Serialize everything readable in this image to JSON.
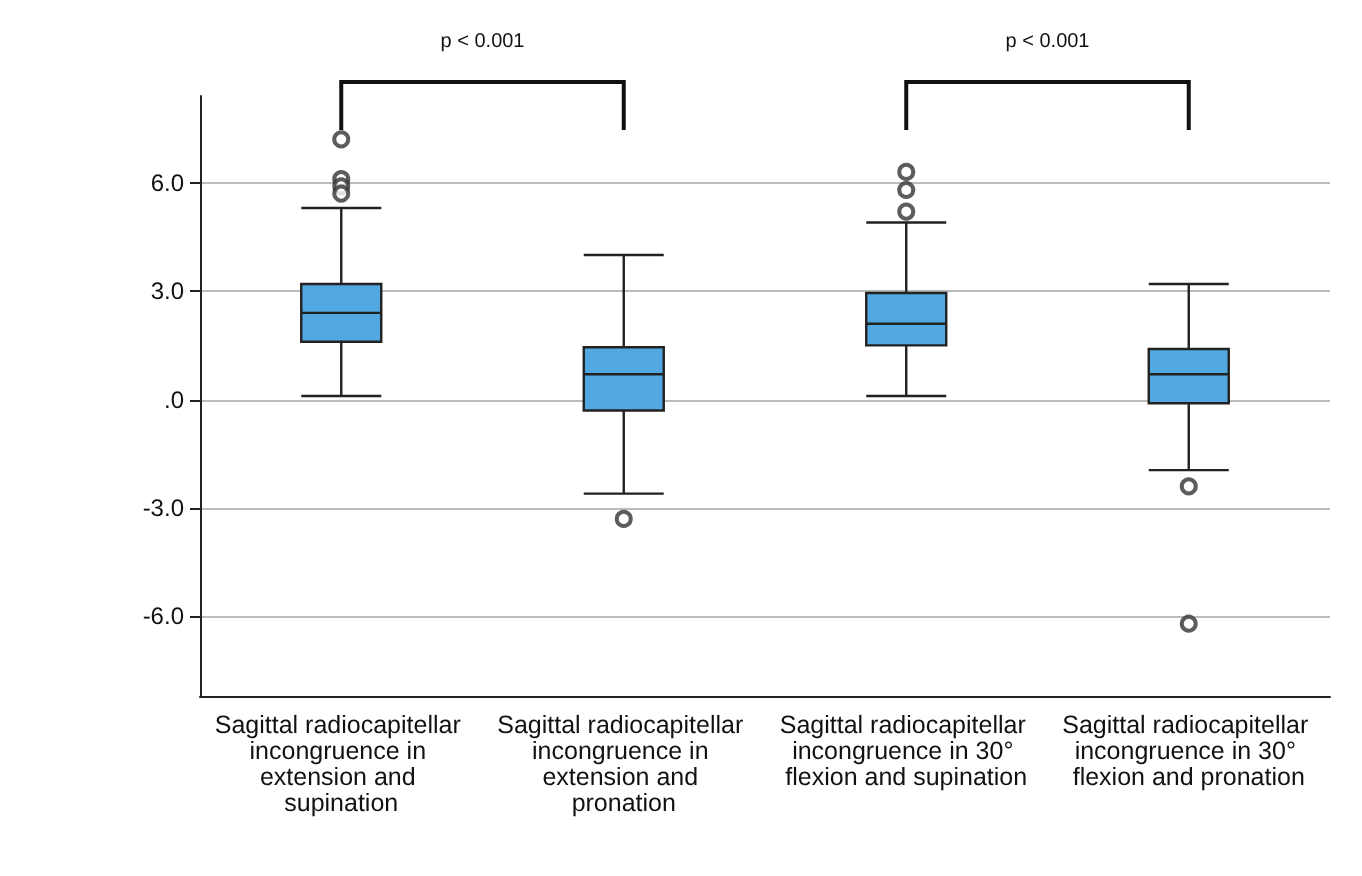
{
  "chart_data": {
    "type": "box",
    "categories": [
      "Sagittal radiocapitellar incongruence in extension and supination",
      "Sagittal radiocapitellar incongruence in extension and pronation",
      "Sagittal radiocapitellar incongruence in 30° flexion and supination",
      "Sagittal radiocapitellar incongruence in 30° flexion and pronation"
    ],
    "boxes": [
      {
        "low": 0.1,
        "q1": 1.6,
        "median": 2.4,
        "q3": 3.2,
        "high": 5.3,
        "outliers": [
          7.2,
          6.1,
          5.9,
          5.7
        ]
      },
      {
        "low": -2.6,
        "q1": -0.3,
        "median": 0.7,
        "q3": 1.45,
        "high": 4.0,
        "outliers": [
          -3.3
        ]
      },
      {
        "low": 0.1,
        "q1": 1.5,
        "median": 2.1,
        "q3": 2.95,
        "high": 4.9,
        "outliers": [
          6.3,
          5.8,
          5.2
        ]
      },
      {
        "low": -1.95,
        "q1": -0.1,
        "median": 0.7,
        "q3": 1.4,
        "high": 3.2,
        "outliers": [
          -2.4,
          -6.2
        ]
      }
    ],
    "color": "#52a8e0",
    "ylim": [
      -8.2,
      8.4
    ],
    "yticks": [
      {
        "value": -6,
        "label": "-6.0"
      },
      {
        "value": -3,
        "label": "-3.0"
      },
      {
        "value": 0,
        "label": ".0"
      },
      {
        "value": 3,
        "label": "3.0"
      },
      {
        "value": 6,
        "label": "6.0"
      }
    ],
    "grid": "y",
    "annotations": [
      "p < 0.001",
      "p < 0.001"
    ]
  }
}
